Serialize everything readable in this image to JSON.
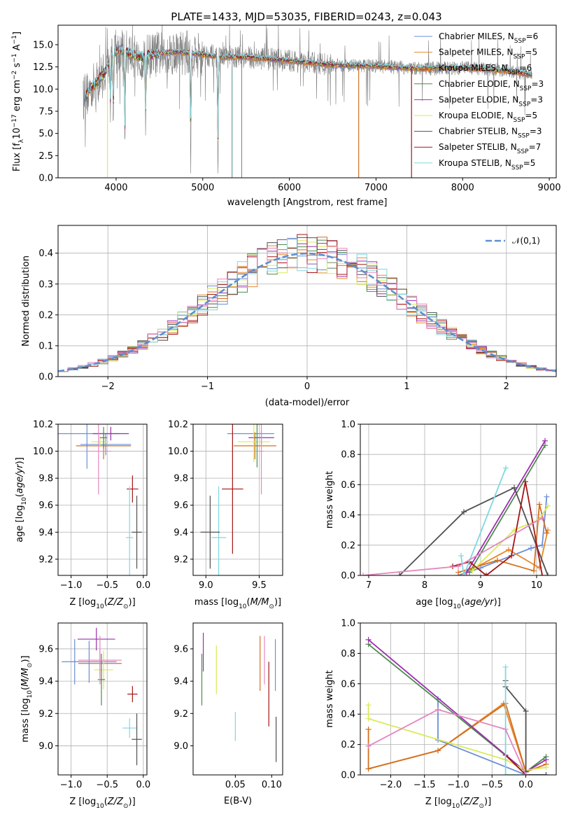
{
  "figure_title": "PLATE=1433, MJD=53035, FIBERID=0243, z=0.043",
  "colors": {
    "Chabrier MILES": "#6b8fd6",
    "Salpeter MILES": "#e7872b",
    "Kroupa MILES": "#d3701f",
    "Chabrier ELODIE": "#4f8a4f",
    "Salpeter ELODIE": "#9b2fae",
    "Kroupa ELODIE": "#d9ea57",
    "Chabrier STELIB": "#505050",
    "Salpeter STELIB": "#a51515",
    "Kroupa STELIB": "#7fd8df",
    "pink": "#e487c0",
    "data": "#808080"
  },
  "chart_data": [
    {
      "id": "spectrum",
      "type": "line",
      "title": "PLATE=1433, MJD=53035, FIBERID=0243, z=0.043",
      "xlabel": "wavelength [Angstrom, rest frame]",
      "ylabel_parts": [
        "Flux [f",
        "λ",
        "10",
        "−17",
        " erg cm",
        "−2",
        " s",
        "−1",
        " A",
        "−1",
        "]"
      ],
      "xlim": [
        3330,
        9080
      ],
      "ylim": [
        0,
        17.2
      ],
      "xticks": [
        4000,
        5000,
        6000,
        7000,
        8000,
        9000
      ],
      "yticks": [
        0.0,
        2.5,
        5.0,
        7.5,
        10.0,
        12.5,
        15.0
      ],
      "yticklabels": [
        "0.0",
        "2.5",
        "5.0",
        "7.5",
        "10.0",
        "12.5",
        "15.0"
      ],
      "legend": [
        {
          "name": "Chabrier MILES, N",
          "sub": "SSP",
          "val": "=6",
          "color": "Chabrier MILES"
        },
        {
          "name": "Salpeter MILES, N",
          "sub": "SSP",
          "val": "=5",
          "color": "Salpeter MILES"
        },
        {
          "name": "Kroupa MILES, N",
          "sub": "SSP",
          "val": "=6",
          "color": "Kroupa MILES"
        },
        {
          "name": "Chabrier ELODIE, N",
          "sub": "SSP",
          "val": "=3",
          "color": "Chabrier ELODIE"
        },
        {
          "name": "Salpeter ELODIE, N",
          "sub": "SSP",
          "val": "=3",
          "color": "Salpeter ELODIE"
        },
        {
          "name": "Kroupa ELODIE, N",
          "sub": "SSP",
          "val": "=5",
          "color": "Kroupa ELODIE"
        },
        {
          "name": "Chabrier STELIB, N",
          "sub": "SSP",
          "val": "=3",
          "color": "Chabrier STELIB"
        },
        {
          "name": "Salpeter STELIB, N",
          "sub": "SSP",
          "val": "=7",
          "color": "Salpeter STELIB"
        },
        {
          "name": "Kroupa STELIB, N",
          "sub": "SSP",
          "val": "=5",
          "color": "Kroupa STELIB"
        }
      ],
      "continuum": [
        [
          3650,
          9.2
        ],
        [
          3700,
          10.0
        ],
        [
          3800,
          11.0
        ],
        [
          3900,
          12.3
        ],
        [
          3970,
          14.2
        ],
        [
          4050,
          14.5
        ],
        [
          4150,
          14.0
        ],
        [
          4300,
          13.6
        ],
        [
          4500,
          14.0
        ],
        [
          4700,
          14.2
        ],
        [
          5000,
          13.9
        ],
        [
          5200,
          13.6
        ],
        [
          5500,
          13.6
        ],
        [
          6000,
          13.2
        ],
        [
          6500,
          12.7
        ],
        [
          7000,
          12.6
        ],
        [
          7500,
          12.3
        ],
        [
          8000,
          12.4
        ],
        [
          8500,
          12.1
        ],
        [
          8800,
          11.6
        ]
      ],
      "model_span": [
        3640,
        8800
      ],
      "data_span": [
        3620,
        8800
      ],
      "absorption": [
        [
          3934,
          5.5
        ],
        [
          3968,
          7.5
        ],
        [
          4102,
          10.5
        ],
        [
          4340,
          8.0
        ],
        [
          4861,
          12.0
        ],
        [
          5175,
          12.0
        ]
      ],
      "model_drops": [
        {
          "x": 3900,
          "color": "Kroupa ELODIE"
        },
        {
          "x": 5335,
          "color": "Kroupa STELIB"
        },
        {
          "x": 6800,
          "color": "Kroupa MILES"
        },
        {
          "x": 7410,
          "color": "Salpeter STELIB"
        }
      ],
      "data_drops": [
        5340,
        5450
      ]
    },
    {
      "id": "residuals",
      "type": "histogram",
      "xlabel": "(data-model)/error",
      "ylabel": "Normed distribution",
      "xlim": [
        -2.5,
        2.5
      ],
      "ylim": [
        0,
        0.49
      ],
      "xticks": [
        -2,
        -1,
        0,
        1,
        2
      ],
      "xticklabels": [
        "−2",
        "−1",
        "0",
        "1",
        "2"
      ],
      "yticks": [
        0.0,
        0.1,
        0.2,
        0.3,
        0.4
      ],
      "yticklabels": [
        "0.0",
        "0.1",
        "0.2",
        "0.3",
        "0.4"
      ],
      "grid": true,
      "bin_width": 0.1,
      "curve_label": "𝒩(0,1)",
      "curve_color": "#5b8fd0",
      "series_colors": [
        "Chabrier MILES",
        "Salpeter MILES",
        "Kroupa MILES",
        "Chabrier ELODIE",
        "Salpeter ELODIE",
        "Kroupa ELODIE",
        "Chabrier STELIB",
        "Salpeter STELIB",
        "Kroupa STELIB",
        "pink"
      ]
    },
    {
      "id": "age-vs-Z",
      "type": "errorbar",
      "xlabel": "Z [log10(Z/Z⊙)]",
      "ylabel": "age [log10(age/yr)]",
      "xlim": [
        -1.18,
        0.05
      ],
      "ylim": [
        9.08,
        10.2
      ],
      "xticks": [
        -1.0,
        -0.5,
        0.0
      ],
      "xticklabels": [
        "−1.0",
        "−0.5",
        "0.0"
      ],
      "yticks": [
        9.2,
        9.4,
        9.6,
        9.8,
        10.0,
        10.2
      ],
      "yticklabels": [
        "9.2",
        "9.4",
        "9.6",
        "9.8",
        "10.0",
        "10.2"
      ],
      "grid": true,
      "points": [
        {
          "x": -0.52,
          "y": 10.05,
          "xerr": 0.35,
          "yerr": 0.08,
          "color": "Chabrier MILES"
        },
        {
          "x": -0.78,
          "y": 10.13,
          "xerr": 0.45,
          "yerr": 0.26,
          "color": "Chabrier MILES"
        },
        {
          "x": -0.55,
          "y": 10.04,
          "xerr": 0.38,
          "yerr": 0.1,
          "color": "Kroupa MILES"
        },
        {
          "x": -0.45,
          "y": 10.13,
          "xerr": 0.25,
          "yerr": 0.05,
          "color": "Salpeter ELODIE"
        },
        {
          "x": -0.6,
          "y": 10.07,
          "xerr": 0.12,
          "yerr": 0.04,
          "color": "Kroupa ELODIE"
        },
        {
          "x": -0.55,
          "y": 10.1,
          "xerr": 0.05,
          "yerr": 0.08,
          "color": "Chabrier ELODIE"
        },
        {
          "x": -0.62,
          "y": 10.0,
          "xerr": 0.18,
          "yerr": 0.32,
          "color": "pink"
        },
        {
          "x": -0.15,
          "y": 9.72,
          "xerr": 0.08,
          "yerr": 0.1,
          "color": "Salpeter STELIB"
        },
        {
          "x": -0.19,
          "y": 9.36,
          "xerr": 0.05,
          "yerr": 0.38,
          "color": "Kroupa STELIB"
        },
        {
          "x": -0.09,
          "y": 9.4,
          "xerr": 0.07,
          "yerr": 0.27,
          "color": "Chabrier STELIB"
        }
      ]
    },
    {
      "id": "age-vs-mass",
      "type": "errorbar",
      "xlabel": "mass [log10(M/M⊙)]",
      "xlim": [
        8.88,
        9.72
      ],
      "ylim": [
        9.08,
        10.2
      ],
      "xticks": [
        9.0,
        9.5
      ],
      "xticklabels": [
        "9.0",
        "9.5"
      ],
      "yticks": [
        9.2,
        9.4,
        9.6,
        9.8,
        10.0,
        10.2
      ],
      "yticklabels": [
        "9.2",
        "9.4",
        "9.6",
        "9.8",
        "10.0",
        "10.2"
      ],
      "grid": true,
      "points": [
        {
          "x": 9.42,
          "y": 10.13,
          "xerr": 0.22,
          "yerr": 0.0,
          "color": "Chabrier MILES"
        },
        {
          "x": 9.46,
          "y": 10.04,
          "xerr": 0.2,
          "yerr": 0.1,
          "color": "Kroupa MILES"
        },
        {
          "x": 9.52,
          "y": 10.1,
          "xerr": 0.12,
          "yerr": 0.05,
          "color": "Salpeter ELODIE"
        },
        {
          "x": 9.45,
          "y": 10.07,
          "xerr": 0.15,
          "yerr": 0.15,
          "color": "Kroupa ELODIE"
        },
        {
          "x": 9.48,
          "y": 10.1,
          "xerr": 0.03,
          "yerr": 0.22,
          "color": "Chabrier ELODIE"
        },
        {
          "x": 9.52,
          "y": 10.0,
          "xerr": 0.02,
          "yerr": 0.32,
          "color": "pink"
        },
        {
          "x": 9.25,
          "y": 9.72,
          "xerr": 0.1,
          "yerr": 0.48,
          "color": "Salpeter STELIB"
        },
        {
          "x": 9.12,
          "y": 9.36,
          "xerr": 0.07,
          "yerr": 0.38,
          "color": "Kroupa STELIB"
        },
        {
          "x": 9.04,
          "y": 9.4,
          "xerr": 0.09,
          "yerr": 0.27,
          "color": "Chabrier STELIB"
        }
      ]
    },
    {
      "id": "mass-weight-vs-age",
      "type": "line",
      "xlabel": "age [log10(age/yr)]",
      "ylabel": "mass weight",
      "xlim": [
        6.85,
        10.35
      ],
      "ylim": [
        0,
        1
      ],
      "xticks": [
        7,
        8,
        9,
        10
      ],
      "xticklabels": [
        "7",
        "8",
        "9",
        "10"
      ],
      "yticks": [
        0.0,
        0.2,
        0.4,
        0.6,
        0.8,
        1.0
      ],
      "yticklabels": [
        "0.0",
        "0.2",
        "0.4",
        "0.6",
        "0.8",
        "1.0"
      ],
      "grid": true,
      "series": [
        {
          "color": "Chabrier MILES",
          "x": [
            8.6,
            9.0,
            9.9,
            10.1,
            10.18
          ],
          "y": [
            0.0,
            0.05,
            0.18,
            0.2,
            0.52
          ]
        },
        {
          "color": "Salpeter MILES",
          "x": [
            8.7,
            9.5,
            10.05,
            10.2
          ],
          "y": [
            0.01,
            0.17,
            0.05,
            0.3
          ]
        },
        {
          "color": "Kroupa MILES",
          "x": [
            8.6,
            9.3,
            9.95,
            10.05,
            10.18
          ],
          "y": [
            0.02,
            0.1,
            0.03,
            0.47,
            0.28
          ]
        },
        {
          "color": "Chabrier ELODIE",
          "x": [
            8.8,
            10.15
          ],
          "y": [
            0.02,
            0.86
          ]
        },
        {
          "color": "Salpeter ELODIE",
          "x": [
            8.75,
            10.15
          ],
          "y": [
            0.02,
            0.89
          ]
        },
        {
          "color": "Kroupa ELODIE",
          "x": [
            8.85,
            9.6,
            10.05,
            10.2
          ],
          "y": [
            0.03,
            0.3,
            0.37,
            0.46
          ]
        },
        {
          "color": "Chabrier STELIB",
          "x": [
            7.55,
            8.7,
            9.6,
            10.2
          ],
          "y": [
            0.0,
            0.42,
            0.58,
            0.0
          ]
        },
        {
          "color": "Salpeter STELIB",
          "x": [
            8.5,
            8.8,
            9.1,
            9.55,
            9.8,
            10.1
          ],
          "y": [
            0.06,
            0.09,
            0.0,
            0.13,
            0.62,
            0.0
          ]
        },
        {
          "color": "Kroupa STELIB",
          "x": [
            8.65,
            8.7,
            9.45
          ],
          "y": [
            0.13,
            0.0,
            0.71
          ]
        },
        {
          "color": "pink",
          "x": [
            6.9,
            8.6,
            10.1
          ],
          "y": [
            0.0,
            0.06,
            0.38
          ]
        }
      ]
    },
    {
      "id": "mass-vs-Z",
      "type": "errorbar",
      "xlabel": "Z [log10(Z/Z⊙)]",
      "ylabel": "mass [log10(M/M⊙)]",
      "xlim": [
        -1.18,
        0.05
      ],
      "ylim": [
        8.82,
        9.76
      ],
      "xticks": [
        -1.0,
        -0.5,
        0.0
      ],
      "xticklabels": [
        "−1.0",
        "−0.5",
        "0.0"
      ],
      "yticks": [
        9.0,
        9.2,
        9.4,
        9.6
      ],
      "yticklabels": [
        "9.0",
        "9.2",
        "9.4",
        "9.6"
      ],
      "grid": true,
      "points": [
        {
          "x": -0.75,
          "y": 9.52,
          "xerr": 0.38,
          "yerr": 0.13,
          "color": "Chabrier MILES"
        },
        {
          "x": -0.95,
          "y": 9.52,
          "xerr": 0.05,
          "yerr": 0.14,
          "color": "Chabrier MILES"
        },
        {
          "x": -0.6,
          "y": 9.51,
          "xerr": 0.3,
          "yerr": 0.08,
          "color": "Kroupa MILES"
        },
        {
          "x": -0.65,
          "y": 9.66,
          "xerr": 0.26,
          "yerr": 0.07,
          "color": "Salpeter ELODIE"
        },
        {
          "x": -0.55,
          "y": 9.47,
          "xerr": 0.13,
          "yerr": 0.12,
          "color": "Kroupa ELODIE"
        },
        {
          "x": -0.58,
          "y": 9.41,
          "xerr": 0.05,
          "yerr": 0.16,
          "color": "Chabrier ELODIE"
        },
        {
          "x": -0.6,
          "y": 9.53,
          "xerr": 0.3,
          "yerr": 0.15,
          "color": "pink"
        },
        {
          "x": -0.15,
          "y": 9.32,
          "xerr": 0.07,
          "yerr": 0.05,
          "color": "Salpeter STELIB"
        },
        {
          "x": -0.19,
          "y": 9.11,
          "xerr": 0.1,
          "yerr": 0.06,
          "color": "Kroupa STELIB"
        },
        {
          "x": -0.09,
          "y": 9.04,
          "xerr": 0.07,
          "yerr": 0.16,
          "color": "Chabrier STELIB"
        }
      ]
    },
    {
      "id": "mass-vs-ebv",
      "type": "errorbar",
      "xlabel": "E(B-V)",
      "xlim": [
        -0.008,
        0.115
      ],
      "ylim": [
        8.82,
        9.76
      ],
      "xticks": [
        0.05,
        0.1
      ],
      "xticklabels": [
        "0.05",
        "0.10"
      ],
      "yticks": [
        9.0,
        9.2,
        9.4,
        9.6
      ],
      "yticklabels": [
        "9.0",
        "9.2",
        "9.4",
        "9.6"
      ],
      "grid": false,
      "points": [
        {
          "x": 0.004,
          "y": 9.41,
          "xerr": 0,
          "yerr": 0.16,
          "color": "Chabrier ELODIE"
        },
        {
          "x": 0.006,
          "y": 9.58,
          "xerr": 0,
          "yerr": 0.12,
          "color": "Salpeter ELODIE"
        },
        {
          "x": 0.024,
          "y": 9.47,
          "xerr": 0,
          "yerr": 0.15,
          "color": "Kroupa ELODIE"
        },
        {
          "x": 0.05,
          "y": 9.12,
          "xerr": 0,
          "yerr": 0.09,
          "color": "Kroupa STELIB"
        },
        {
          "x": 0.084,
          "y": 9.51,
          "xerr": 0,
          "yerr": 0.17,
          "color": "Kroupa MILES"
        },
        {
          "x": 0.09,
          "y": 9.53,
          "xerr": 0,
          "yerr": 0.15,
          "color": "pink"
        },
        {
          "x": 0.096,
          "y": 9.32,
          "xerr": 0,
          "yerr": 0.2,
          "color": "Salpeter STELIB"
        },
        {
          "x": 0.105,
          "y": 9.5,
          "xerr": 0,
          "yerr": 0.16,
          "color": "Chabrier MILES"
        },
        {
          "x": 0.106,
          "y": 9.04,
          "xerr": 0,
          "yerr": 0.14,
          "color": "Chabrier STELIB"
        }
      ]
    },
    {
      "id": "mass-weight-vs-Z",
      "type": "line",
      "xlabel": "Z [log10(Z/Z⊙)]",
      "ylabel": "mass weight",
      "xlim": [
        -2.45,
        0.45
      ],
      "ylim": [
        0,
        1
      ],
      "xticks": [
        -2.0,
        -1.5,
        -1.0,
        -0.5,
        0.0
      ],
      "xticklabels": [
        "−2.0",
        "−1.5",
        "−1.0",
        "−0.5",
        "0.0"
      ],
      "yticks": [
        0.0,
        0.2,
        0.4,
        0.6,
        0.8,
        1.0
      ],
      "yticklabels": [
        "0.0",
        "0.2",
        "0.4",
        "0.6",
        "0.8",
        "1.0"
      ],
      "grid": true,
      "series": [
        {
          "color": "Chabrier MILES",
          "x": [
            -1.3,
            -1.3,
            0.0,
            0.3
          ],
          "y": [
            0.5,
            0.23,
            0.0,
            0.0
          ]
        },
        {
          "color": "Salpeter MILES",
          "x": [
            -2.33,
            -1.3,
            -0.33,
            0.0,
            0.3
          ],
          "y": [
            0.04,
            0.16,
            0.47,
            0.02,
            0.07
          ]
        },
        {
          "color": "Kroupa MILES",
          "x": [
            -2.33,
            -2.33,
            -1.3,
            -0.3,
            0.0,
            0.3
          ],
          "y": [
            0.3,
            0.04,
            0.16,
            0.47,
            0.02,
            0.07
          ]
        },
        {
          "color": "Chabrier ELODIE",
          "x": [
            -2.33,
            0.0,
            0.3
          ],
          "y": [
            0.86,
            0.02,
            0.12
          ]
        },
        {
          "color": "Salpeter ELODIE",
          "x": [
            -2.33,
            0.0,
            0.3
          ],
          "y": [
            0.89,
            0.02,
            0.1
          ]
        },
        {
          "color": "Kroupa ELODIE",
          "x": [
            -2.33,
            -2.33,
            -0.3,
            0.0,
            0.3
          ],
          "y": [
            0.46,
            0.37,
            0.1,
            0.03,
            0.05
          ]
        },
        {
          "color": "Chabrier STELIB",
          "x": [
            -0.3,
            -0.3,
            0.0,
            0.0,
            0.3
          ],
          "y": [
            0.62,
            0.58,
            0.42,
            0.0,
            0.0
          ]
        },
        {
          "color": "Salpeter STELIB",
          "x": [
            -0.3,
            0.0
          ],
          "y": [
            0.13,
            0.0
          ]
        },
        {
          "color": "Kroupa STELIB",
          "x": [
            -0.3,
            -0.3,
            0.0
          ],
          "y": [
            0.71,
            0.0,
            0.0
          ]
        },
        {
          "color": "pink",
          "x": [
            -2.33,
            -1.3,
            -0.3,
            0.0
          ],
          "y": [
            0.19,
            0.43,
            0.3,
            0.0
          ]
        }
      ]
    }
  ]
}
